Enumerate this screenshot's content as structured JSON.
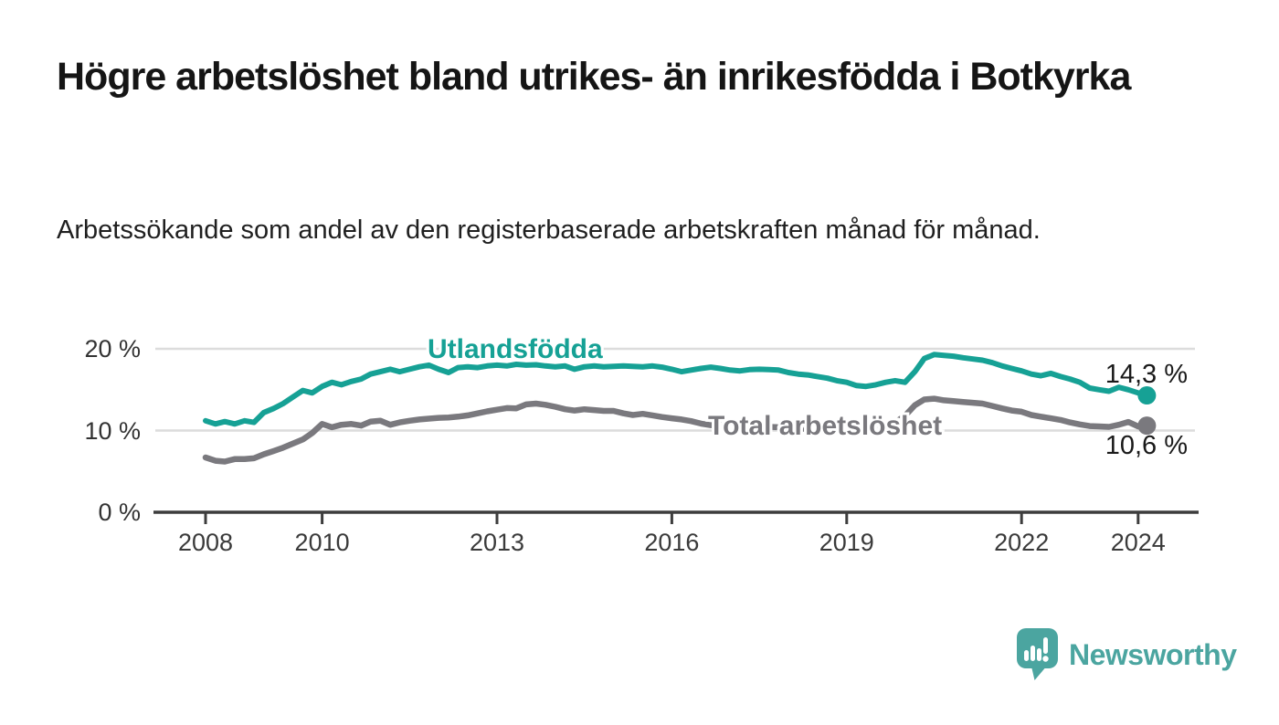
{
  "header": {
    "title": "Högre arbetslöshet bland utrikes- än inrikesfödda i Botkyrka",
    "subtitle": "Arbetssökande som andel av den registerbaserade arbetskraften månad för månad."
  },
  "chart_data": {
    "type": "line",
    "title": "Högre arbetslöshet bland utrikes- än inrikesfödda i Botkyrka",
    "subtitle": "Arbetssökande som andel av den registerbaserade arbetskraften månad för månad.",
    "x_unit": "year (monthly observations)",
    "xlim": [
      2007.1,
      2025.1
    ],
    "ylim": [
      0,
      21.5
    ],
    "grid": "horizontal",
    "legend_position": "inline-labels",
    "yticks": [
      {
        "value": 0,
        "label": "0 %"
      },
      {
        "value": 10,
        "label": "10 %"
      },
      {
        "value": 20,
        "label": "20 %"
      }
    ],
    "xticks": [
      {
        "value": 2008,
        "label": "2008"
      },
      {
        "value": 2010,
        "label": "2010"
      },
      {
        "value": 2013,
        "label": "2013"
      },
      {
        "value": 2016,
        "label": "2016"
      },
      {
        "value": 2019,
        "label": "2019"
      },
      {
        "value": 2022,
        "label": "2022"
      },
      {
        "value": 2024,
        "label": "2024"
      }
    ],
    "series": [
      {
        "name": "Utlandsfödda",
        "color": "#16a195",
        "end_value": 14.3,
        "end_label": "14,3 %",
        "points": [
          [
            2008.0,
            11.2
          ],
          [
            2008.17,
            10.8
          ],
          [
            2008.33,
            11.1
          ],
          [
            2008.5,
            10.8
          ],
          [
            2008.67,
            11.2
          ],
          [
            2008.83,
            11.0
          ],
          [
            2009.0,
            12.2
          ],
          [
            2009.17,
            12.7
          ],
          [
            2009.33,
            13.3
          ],
          [
            2009.5,
            14.1
          ],
          [
            2009.67,
            14.9
          ],
          [
            2009.83,
            14.6
          ],
          [
            2010.0,
            15.4
          ],
          [
            2010.17,
            15.9
          ],
          [
            2010.33,
            15.6
          ],
          [
            2010.5,
            16.0
          ],
          [
            2010.67,
            16.3
          ],
          [
            2010.83,
            16.9
          ],
          [
            2011.0,
            17.2
          ],
          [
            2011.17,
            17.5
          ],
          [
            2011.33,
            17.2
          ],
          [
            2011.5,
            17.5
          ],
          [
            2011.67,
            17.8
          ],
          [
            2011.83,
            18.0
          ],
          [
            2012.0,
            17.5
          ],
          [
            2012.17,
            17.1
          ],
          [
            2012.33,
            17.7
          ],
          [
            2012.5,
            17.8
          ],
          [
            2012.67,
            17.7
          ],
          [
            2012.83,
            17.9
          ],
          [
            2013.0,
            18.0
          ],
          [
            2013.17,
            17.9
          ],
          [
            2013.33,
            18.1
          ],
          [
            2013.5,
            18.0
          ],
          [
            2013.67,
            18.05
          ],
          [
            2013.83,
            17.9
          ],
          [
            2014.0,
            17.8
          ],
          [
            2014.17,
            17.9
          ],
          [
            2014.33,
            17.5
          ],
          [
            2014.5,
            17.8
          ],
          [
            2014.67,
            17.9
          ],
          [
            2014.83,
            17.8
          ],
          [
            2015.0,
            17.85
          ],
          [
            2015.17,
            17.9
          ],
          [
            2015.33,
            17.85
          ],
          [
            2015.5,
            17.8
          ],
          [
            2015.67,
            17.9
          ],
          [
            2015.83,
            17.75
          ],
          [
            2016.0,
            17.5
          ],
          [
            2016.17,
            17.2
          ],
          [
            2016.33,
            17.4
          ],
          [
            2016.5,
            17.6
          ],
          [
            2016.67,
            17.75
          ],
          [
            2016.83,
            17.6
          ],
          [
            2017.0,
            17.4
          ],
          [
            2017.17,
            17.3
          ],
          [
            2017.33,
            17.45
          ],
          [
            2017.5,
            17.5
          ],
          [
            2017.67,
            17.45
          ],
          [
            2017.83,
            17.4
          ],
          [
            2018.0,
            17.1
          ],
          [
            2018.17,
            16.9
          ],
          [
            2018.33,
            16.8
          ],
          [
            2018.5,
            16.6
          ],
          [
            2018.67,
            16.4
          ],
          [
            2018.83,
            16.1
          ],
          [
            2019.0,
            15.9
          ],
          [
            2019.17,
            15.5
          ],
          [
            2019.33,
            15.4
          ],
          [
            2019.5,
            15.6
          ],
          [
            2019.67,
            15.9
          ],
          [
            2019.83,
            16.1
          ],
          [
            2020.0,
            15.9
          ],
          [
            2020.17,
            17.2
          ],
          [
            2020.33,
            18.8
          ],
          [
            2020.5,
            19.3
          ],
          [
            2020.67,
            19.2
          ],
          [
            2020.83,
            19.1
          ],
          [
            2021.0,
            18.9
          ],
          [
            2021.17,
            18.75
          ],
          [
            2021.33,
            18.6
          ],
          [
            2021.5,
            18.3
          ],
          [
            2021.67,
            17.9
          ],
          [
            2021.83,
            17.6
          ],
          [
            2022.0,
            17.3
          ],
          [
            2022.17,
            16.9
          ],
          [
            2022.33,
            16.7
          ],
          [
            2022.5,
            17.0
          ],
          [
            2022.67,
            16.6
          ],
          [
            2022.83,
            16.3
          ],
          [
            2023.0,
            15.9
          ],
          [
            2023.17,
            15.2
          ],
          [
            2023.33,
            15.0
          ],
          [
            2023.5,
            14.8
          ],
          [
            2023.67,
            15.3
          ],
          [
            2023.83,
            15.0
          ],
          [
            2024.0,
            14.6
          ],
          [
            2024.15,
            14.3
          ]
        ]
      },
      {
        "name": "Total arbetslöshet",
        "color": "#7a797e",
        "end_value": 10.6,
        "end_label": "10,6 %",
        "points": [
          [
            2008.0,
            6.7
          ],
          [
            2008.17,
            6.3
          ],
          [
            2008.33,
            6.2
          ],
          [
            2008.5,
            6.5
          ],
          [
            2008.67,
            6.5
          ],
          [
            2008.83,
            6.6
          ],
          [
            2009.0,
            7.1
          ],
          [
            2009.17,
            7.5
          ],
          [
            2009.33,
            7.9
          ],
          [
            2009.5,
            8.4
          ],
          [
            2009.67,
            8.9
          ],
          [
            2009.83,
            9.7
          ],
          [
            2010.0,
            10.8
          ],
          [
            2010.17,
            10.4
          ],
          [
            2010.33,
            10.7
          ],
          [
            2010.5,
            10.8
          ],
          [
            2010.67,
            10.6
          ],
          [
            2010.83,
            11.1
          ],
          [
            2011.0,
            11.2
          ],
          [
            2011.17,
            10.7
          ],
          [
            2011.33,
            11.0
          ],
          [
            2011.5,
            11.2
          ],
          [
            2011.67,
            11.35
          ],
          [
            2011.83,
            11.45
          ],
          [
            2012.0,
            11.55
          ],
          [
            2012.17,
            11.6
          ],
          [
            2012.33,
            11.7
          ],
          [
            2012.5,
            11.85
          ],
          [
            2012.67,
            12.1
          ],
          [
            2012.83,
            12.35
          ],
          [
            2013.0,
            12.55
          ],
          [
            2013.17,
            12.75
          ],
          [
            2013.33,
            12.7
          ],
          [
            2013.5,
            13.2
          ],
          [
            2013.67,
            13.3
          ],
          [
            2013.83,
            13.15
          ],
          [
            2014.0,
            12.9
          ],
          [
            2014.17,
            12.6
          ],
          [
            2014.33,
            12.45
          ],
          [
            2014.5,
            12.6
          ],
          [
            2014.67,
            12.5
          ],
          [
            2014.83,
            12.4
          ],
          [
            2015.0,
            12.4
          ],
          [
            2015.17,
            12.1
          ],
          [
            2015.33,
            11.9
          ],
          [
            2015.5,
            12.05
          ],
          [
            2015.67,
            11.85
          ],
          [
            2015.83,
            11.65
          ],
          [
            2016.0,
            11.5
          ],
          [
            2016.17,
            11.35
          ],
          [
            2016.33,
            11.15
          ],
          [
            2016.5,
            10.85
          ],
          [
            2016.67,
            10.65
          ],
          [
            2016.83,
            10.8
          ],
          [
            2017.0,
            10.9
          ],
          [
            2017.17,
            10.75
          ],
          [
            2017.33,
            10.6
          ],
          [
            2017.5,
            10.5
          ],
          [
            2017.67,
            10.45
          ],
          [
            2017.83,
            10.4
          ],
          [
            2018.0,
            10.3
          ],
          [
            2018.17,
            10.25
          ],
          [
            2018.33,
            10.2
          ],
          [
            2018.5,
            10.25
          ],
          [
            2018.67,
            10.3
          ],
          [
            2018.83,
            10.4
          ],
          [
            2019.0,
            10.5
          ],
          [
            2019.17,
            10.55
          ],
          [
            2019.33,
            10.6
          ],
          [
            2019.5,
            10.7
          ],
          [
            2019.67,
            10.8
          ],
          [
            2019.83,
            11.0
          ],
          [
            2020.0,
            11.8
          ],
          [
            2020.17,
            13.1
          ],
          [
            2020.33,
            13.8
          ],
          [
            2020.5,
            13.9
          ],
          [
            2020.67,
            13.7
          ],
          [
            2020.83,
            13.6
          ],
          [
            2021.0,
            13.5
          ],
          [
            2021.17,
            13.4
          ],
          [
            2021.33,
            13.3
          ],
          [
            2021.5,
            13.0
          ],
          [
            2021.67,
            12.7
          ],
          [
            2021.83,
            12.45
          ],
          [
            2022.0,
            12.3
          ],
          [
            2022.17,
            11.9
          ],
          [
            2022.33,
            11.7
          ],
          [
            2022.5,
            11.5
          ],
          [
            2022.67,
            11.3
          ],
          [
            2022.83,
            11.0
          ],
          [
            2023.0,
            10.75
          ],
          [
            2023.17,
            10.55
          ],
          [
            2023.33,
            10.5
          ],
          [
            2023.5,
            10.45
          ],
          [
            2023.67,
            10.7
          ],
          [
            2023.83,
            11.05
          ],
          [
            2024.0,
            10.5
          ],
          [
            2024.15,
            10.6
          ]
        ]
      }
    ]
  },
  "logo": {
    "text": "Newsworthy",
    "color": "#4ba5a0",
    "icon": "speech-bubble-bar-chart-icon"
  },
  "style": {
    "grid_color": "#dcdcdc",
    "axis_color": "#3d3d3d",
    "tick_label_color": "#333333",
    "title_color": "#151515"
  }
}
